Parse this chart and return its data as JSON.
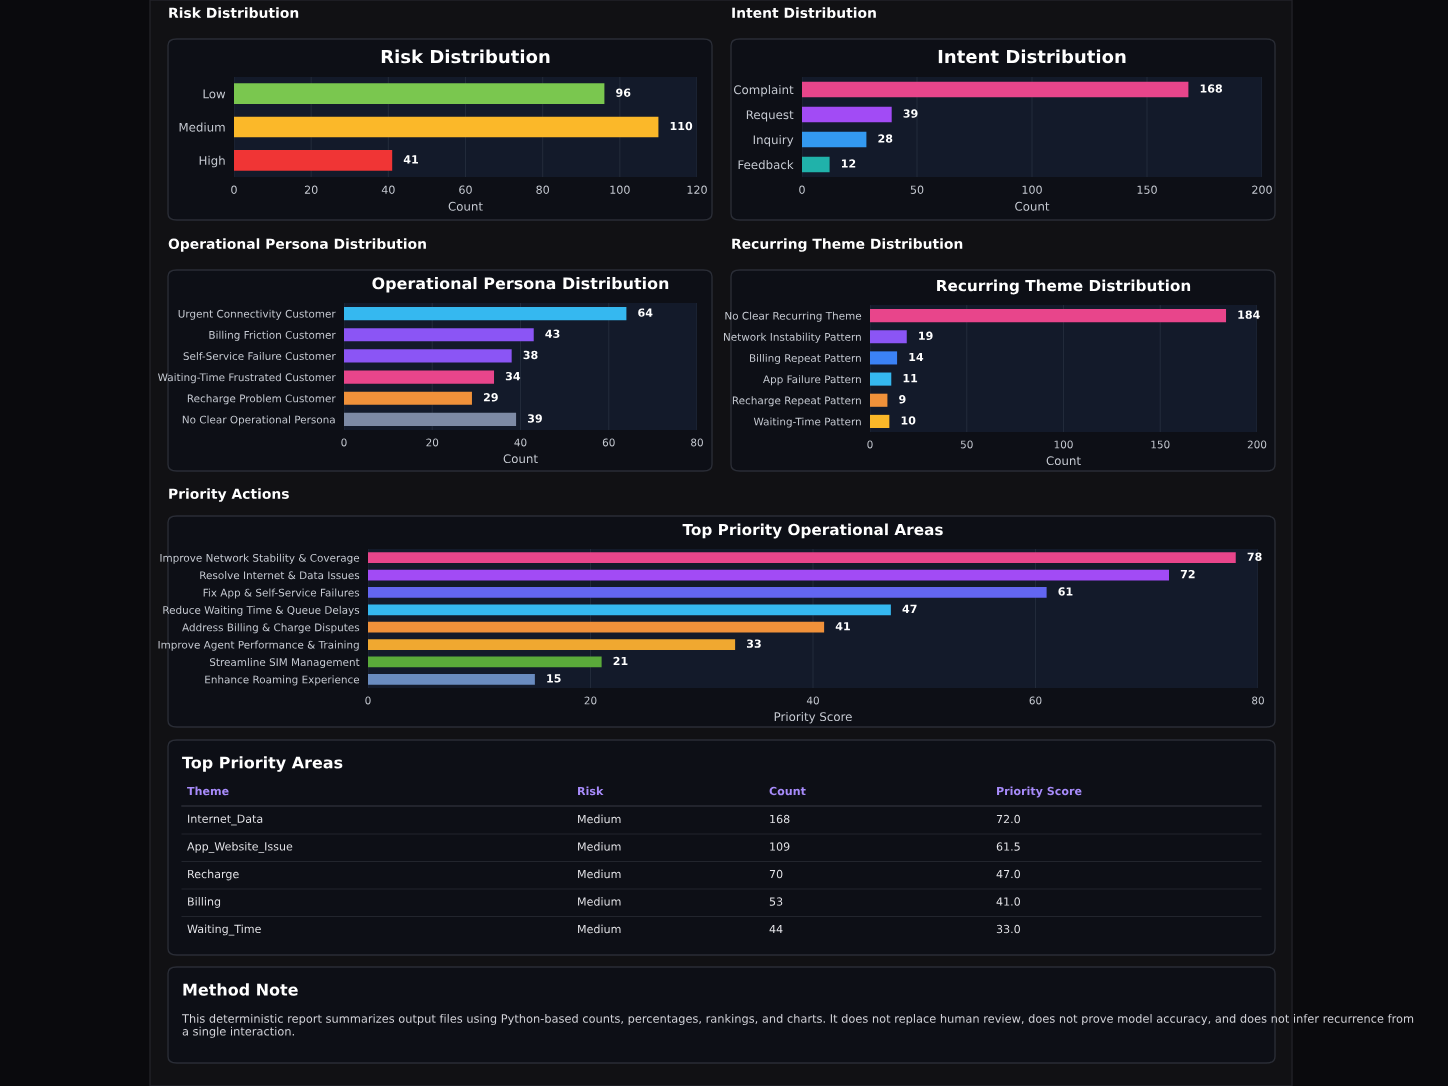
{
  "chart_data": [
    {
      "type": "bar",
      "orientation": "horizontal",
      "subtitle": "Risk Distribution",
      "title": "Risk Distribution",
      "xlabel": "Count",
      "categories": [
        "Low",
        "Medium",
        "High"
      ],
      "values": [
        96,
        110,
        41
      ],
      "colors": [
        "#7ac74f",
        "#fbb829",
        "#f03535"
      ],
      "xlim": [
        0,
        120
      ],
      "xticks": [
        0,
        20,
        40,
        60,
        80,
        100,
        120
      ],
      "grid": "x",
      "data_labels": true
    },
    {
      "type": "bar",
      "orientation": "horizontal",
      "subtitle": "Intent Distribution",
      "title": "Intent Distribution",
      "xlabel": "Count",
      "categories": [
        "Complaint",
        "Request",
        "Inquiry",
        "Feedback"
      ],
      "values": [
        168,
        39,
        28,
        12
      ],
      "colors": [
        "#e8458b",
        "#a24bf5",
        "#3399f0",
        "#20b2aa"
      ],
      "xlim": [
        0,
        200
      ],
      "xticks": [
        0,
        50,
        100,
        150,
        200
      ],
      "grid": "x",
      "data_labels": true
    },
    {
      "type": "bar",
      "orientation": "horizontal",
      "subtitle": "Operational Persona Distribution",
      "title": "Operational Persona Distribution",
      "xlabel": "Count",
      "categories": [
        "Urgent Connectivity Customer",
        "Billing Friction Customer",
        "Self-Service Failure Customer",
        "Waiting-Time Frustrated Customer",
        "Recharge Problem Customer",
        "No Clear Operational Persona"
      ],
      "values": [
        64,
        43,
        38,
        34,
        29,
        39
      ],
      "colors": [
        "#35b8f0",
        "#8b55f5",
        "#8b55f5",
        "#e8458b",
        "#f0913a",
        "#7d8aa5"
      ],
      "xlim": [
        0,
        80
      ],
      "xticks": [
        0,
        20,
        40,
        60,
        80
      ],
      "grid": "x",
      "data_labels": true
    },
    {
      "type": "bar",
      "orientation": "horizontal",
      "subtitle": "Recurring Theme Distribution",
      "title": "Recurring Theme Distribution",
      "xlabel": "Count",
      "categories": [
        "No Clear Recurring Theme",
        "Network Instability Pattern",
        "Billing Repeat Pattern",
        "App Failure Pattern",
        "Recharge Repeat Pattern",
        "Waiting-Time Pattern"
      ],
      "values": [
        184,
        19,
        14,
        11,
        9,
        10
      ],
      "colors": [
        "#e8458b",
        "#8b55f5",
        "#3b82f6",
        "#35b8f0",
        "#f0913a",
        "#fbb829"
      ],
      "xlim": [
        0,
        200
      ],
      "xticks": [
        0,
        50,
        100,
        150,
        200
      ],
      "grid": "x",
      "data_labels": true
    },
    {
      "type": "bar",
      "orientation": "horizontal",
      "subtitle": "Priority Actions",
      "title": "Top Priority Operational Areas",
      "xlabel": "Priority Score",
      "categories": [
        "Improve Network Stability & Coverage",
        "Resolve Internet & Data Issues",
        "Fix App & Self-Service Failures",
        "Reduce Waiting Time & Queue Delays",
        "Address Billing & Charge Disputes",
        "Improve Agent Performance & Training",
        "Streamline SIM Management",
        "Enhance Roaming Experience"
      ],
      "values": [
        78,
        72,
        61,
        47,
        41,
        33,
        21,
        15
      ],
      "colors": [
        "#e8458b",
        "#a24bf5",
        "#6366f1",
        "#35b8f0",
        "#f0913a",
        "#f0a830",
        "#5aaa3a",
        "#6a8cc0"
      ],
      "xlim": [
        0,
        80
      ],
      "xticks": [
        0,
        20,
        40,
        60,
        80
      ],
      "grid": "x",
      "data_labels": true
    },
    {
      "type": "other",
      "title": "Top Priority Areas",
      "categories": [
        "Theme",
        "Risk",
        "Count",
        "Priority Score"
      ],
      "cell_labels": [
        [
          "Internet_Data",
          "Medium",
          "168",
          "72.0"
        ],
        [
          "App_Website_Issue",
          "Medium",
          "109",
          "61.5"
        ],
        [
          "Recharge",
          "Medium",
          "70",
          "47.0"
        ],
        [
          "Billing",
          "Medium",
          "53",
          "41.0"
        ],
        [
          "Waiting_Time",
          "Medium",
          "44",
          "33.0"
        ]
      ]
    },
    {
      "type": "other",
      "title": "Method Note",
      "annotations": [
        "This deterministic report summarizes output files using Python-based counts, percentages, rankings, and charts. It does not replace human review, does not prove model accuracy, and does not infer recurrence from a single interaction."
      ]
    }
  ]
}
